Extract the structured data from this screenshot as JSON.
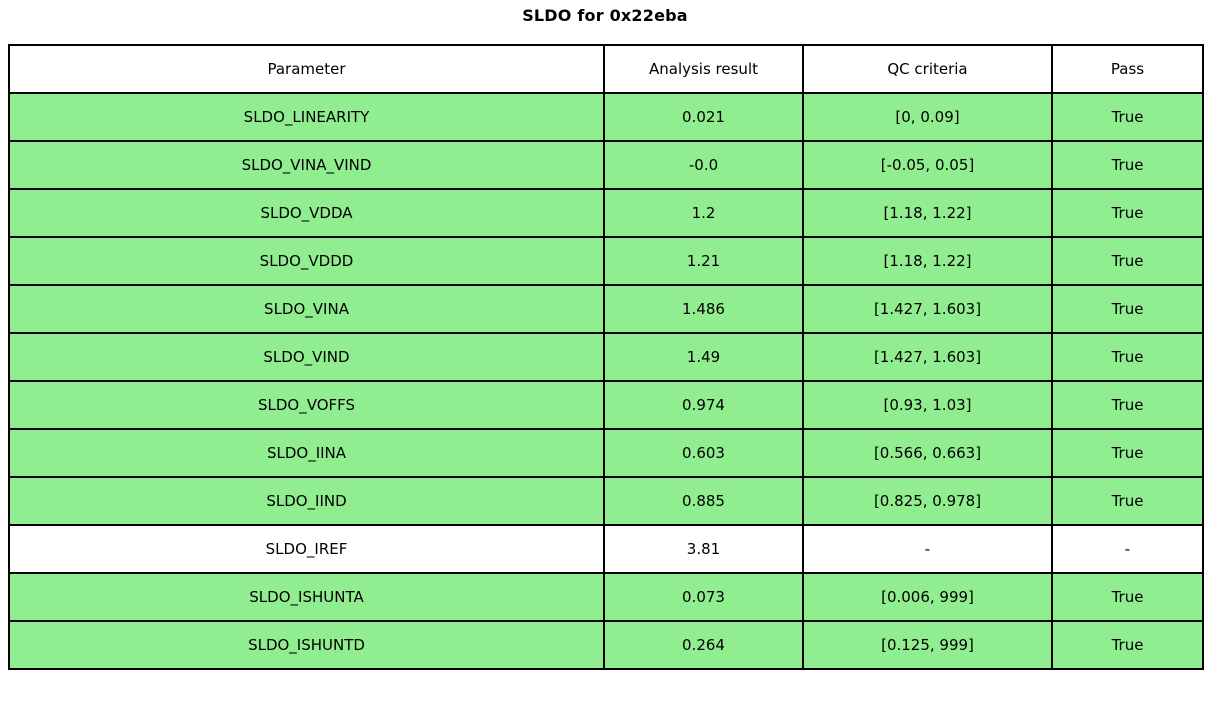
{
  "chart_data": {
    "type": "table",
    "title": "SLDO for 0x22eba",
    "columns": [
      "Parameter",
      "Analysis result",
      "QC criteria",
      "Pass"
    ],
    "rows": [
      {
        "parameter": "SLDO_LINEARITY",
        "result": "0.021",
        "criteria": "[0, 0.09]",
        "pass": "True",
        "status": "pass"
      },
      {
        "parameter": "SLDO_VINA_VIND",
        "result": "-0.0",
        "criteria": "[-0.05, 0.05]",
        "pass": "True",
        "status": "pass"
      },
      {
        "parameter": "SLDO_VDDA",
        "result": "1.2",
        "criteria": "[1.18, 1.22]",
        "pass": "True",
        "status": "pass"
      },
      {
        "parameter": "SLDO_VDDD",
        "result": "1.21",
        "criteria": "[1.18, 1.22]",
        "pass": "True",
        "status": "pass"
      },
      {
        "parameter": "SLDO_VINA",
        "result": "1.486",
        "criteria": "[1.427, 1.603]",
        "pass": "True",
        "status": "pass"
      },
      {
        "parameter": "SLDO_VIND",
        "result": "1.49",
        "criteria": "[1.427, 1.603]",
        "pass": "True",
        "status": "pass"
      },
      {
        "parameter": "SLDO_VOFFS",
        "result": "0.974",
        "criteria": "[0.93, 1.03]",
        "pass": "True",
        "status": "pass"
      },
      {
        "parameter": "SLDO_IINA",
        "result": "0.603",
        "criteria": "[0.566, 0.663]",
        "pass": "True",
        "status": "pass"
      },
      {
        "parameter": "SLDO_IIND",
        "result": "0.885",
        "criteria": "[0.825, 0.978]",
        "pass": "True",
        "status": "pass"
      },
      {
        "parameter": "SLDO_IREF",
        "result": "3.81",
        "criteria": "-",
        "pass": "-",
        "status": "none"
      },
      {
        "parameter": "SLDO_ISHUNTA",
        "result": "0.073",
        "criteria": "[0.006, 999]",
        "pass": "True",
        "status": "pass"
      },
      {
        "parameter": "SLDO_ISHUNTD",
        "result": "0.264",
        "criteria": "[0.125, 999]",
        "pass": "True",
        "status": "pass"
      }
    ],
    "colors": {
      "pass_row": "#90ee90",
      "neutral_row": "#ffffff",
      "border": "#000000",
      "header_background": "#ffffff",
      "text": "#000000"
    },
    "layout": {
      "grid": "all-borders",
      "title_position": "top-center",
      "legend": "none"
    }
  }
}
